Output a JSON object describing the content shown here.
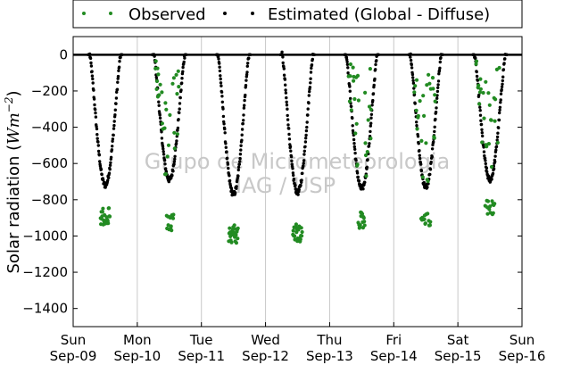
{
  "chart_data": {
    "type": "scatter",
    "ylabel_prefix": "Solar radiation (",
    "ylabel_unit": "Wm",
    "ylabel_exp": "−2",
    "ylabel_suffix": ")",
    "ylim": [
      -1500,
      100
    ],
    "yticks": [
      0,
      -200,
      -400,
      -600,
      -800,
      -1000,
      -1200,
      -1400
    ],
    "xlim": [
      "2012-09-09",
      "2012-09-16"
    ],
    "grid": "vertical",
    "legend_position": "above-top",
    "xticks": [
      {
        "date": "2012-09-09",
        "day": "Sun",
        "label": "Sep-09"
      },
      {
        "date": "2012-09-10",
        "day": "Mon",
        "label": "Sep-10"
      },
      {
        "date": "2012-09-11",
        "day": "Tue",
        "label": "Sep-11"
      },
      {
        "date": "2012-09-12",
        "day": "Wed",
        "label": "Sep-12"
      },
      {
        "date": "2012-09-13",
        "day": "Thu",
        "label": "Sep-13"
      },
      {
        "date": "2012-09-14",
        "day": "Fri",
        "label": "Sep-14"
      },
      {
        "date": "2012-09-15",
        "day": "Sat",
        "label": "Sep-15"
      },
      {
        "date": "2012-09-16",
        "day": "Sun",
        "label": "Sep-16"
      }
    ],
    "series": [
      {
        "name": "Observed",
        "color": "#228b22",
        "daily": [
          {
            "date": "2012-09-09",
            "peak": -940,
            "sunrise_hour": 6.2,
            "sunset_hour": 17.8,
            "cloudy": false
          },
          {
            "date": "2012-09-10",
            "peak": -980,
            "sunrise_hour": 6.2,
            "sunset_hour": 17.8,
            "cloudy": true
          },
          {
            "date": "2012-09-11",
            "peak": -1040,
            "sunrise_hour": 6.2,
            "sunset_hour": 17.8,
            "cloudy": false
          },
          {
            "date": "2012-09-12",
            "peak": -1035,
            "sunrise_hour": 6.2,
            "sunset_hour": 17.8,
            "cloudy": false
          },
          {
            "date": "2012-09-13",
            "peak": -960,
            "sunrise_hour": 6.2,
            "sunset_hour": 17.8,
            "cloudy": true
          },
          {
            "date": "2012-09-14",
            "peak": -950,
            "sunrise_hour": 6.2,
            "sunset_hour": 17.8,
            "cloudy": true
          },
          {
            "date": "2012-09-15",
            "peak": -890,
            "sunrise_hour": 6.2,
            "sunset_hour": 17.8,
            "cloudy": true
          }
        ]
      },
      {
        "name": "Estimated (Global - Diffuse)",
        "color": "#000000",
        "daily": [
          {
            "date": "2012-09-09",
            "peak": -720,
            "sunrise_hour": 6.2,
            "sunset_hour": 17.8
          },
          {
            "date": "2012-09-10",
            "peak": -690,
            "sunrise_hour": 6.2,
            "sunset_hour": 17.8
          },
          {
            "date": "2012-09-11",
            "peak": -770,
            "sunrise_hour": 6.2,
            "sunset_hour": 17.8
          },
          {
            "date": "2012-09-12",
            "peak": -760,
            "sunrise_hour": 6.2,
            "sunset_hour": 17.8
          },
          {
            "date": "2012-09-13",
            "peak": -740,
            "sunrise_hour": 6.2,
            "sunset_hour": 17.8
          },
          {
            "date": "2012-09-14",
            "peak": -730,
            "sunrise_hour": 6.2,
            "sunset_hour": 17.8
          },
          {
            "date": "2012-09-15",
            "peak": -690,
            "sunrise_hour": 6.2,
            "sunset_hour": 17.8
          }
        ]
      }
    ],
    "watermark": [
      "Grupo de Micrometeorologia",
      "IAG / USP"
    ]
  }
}
